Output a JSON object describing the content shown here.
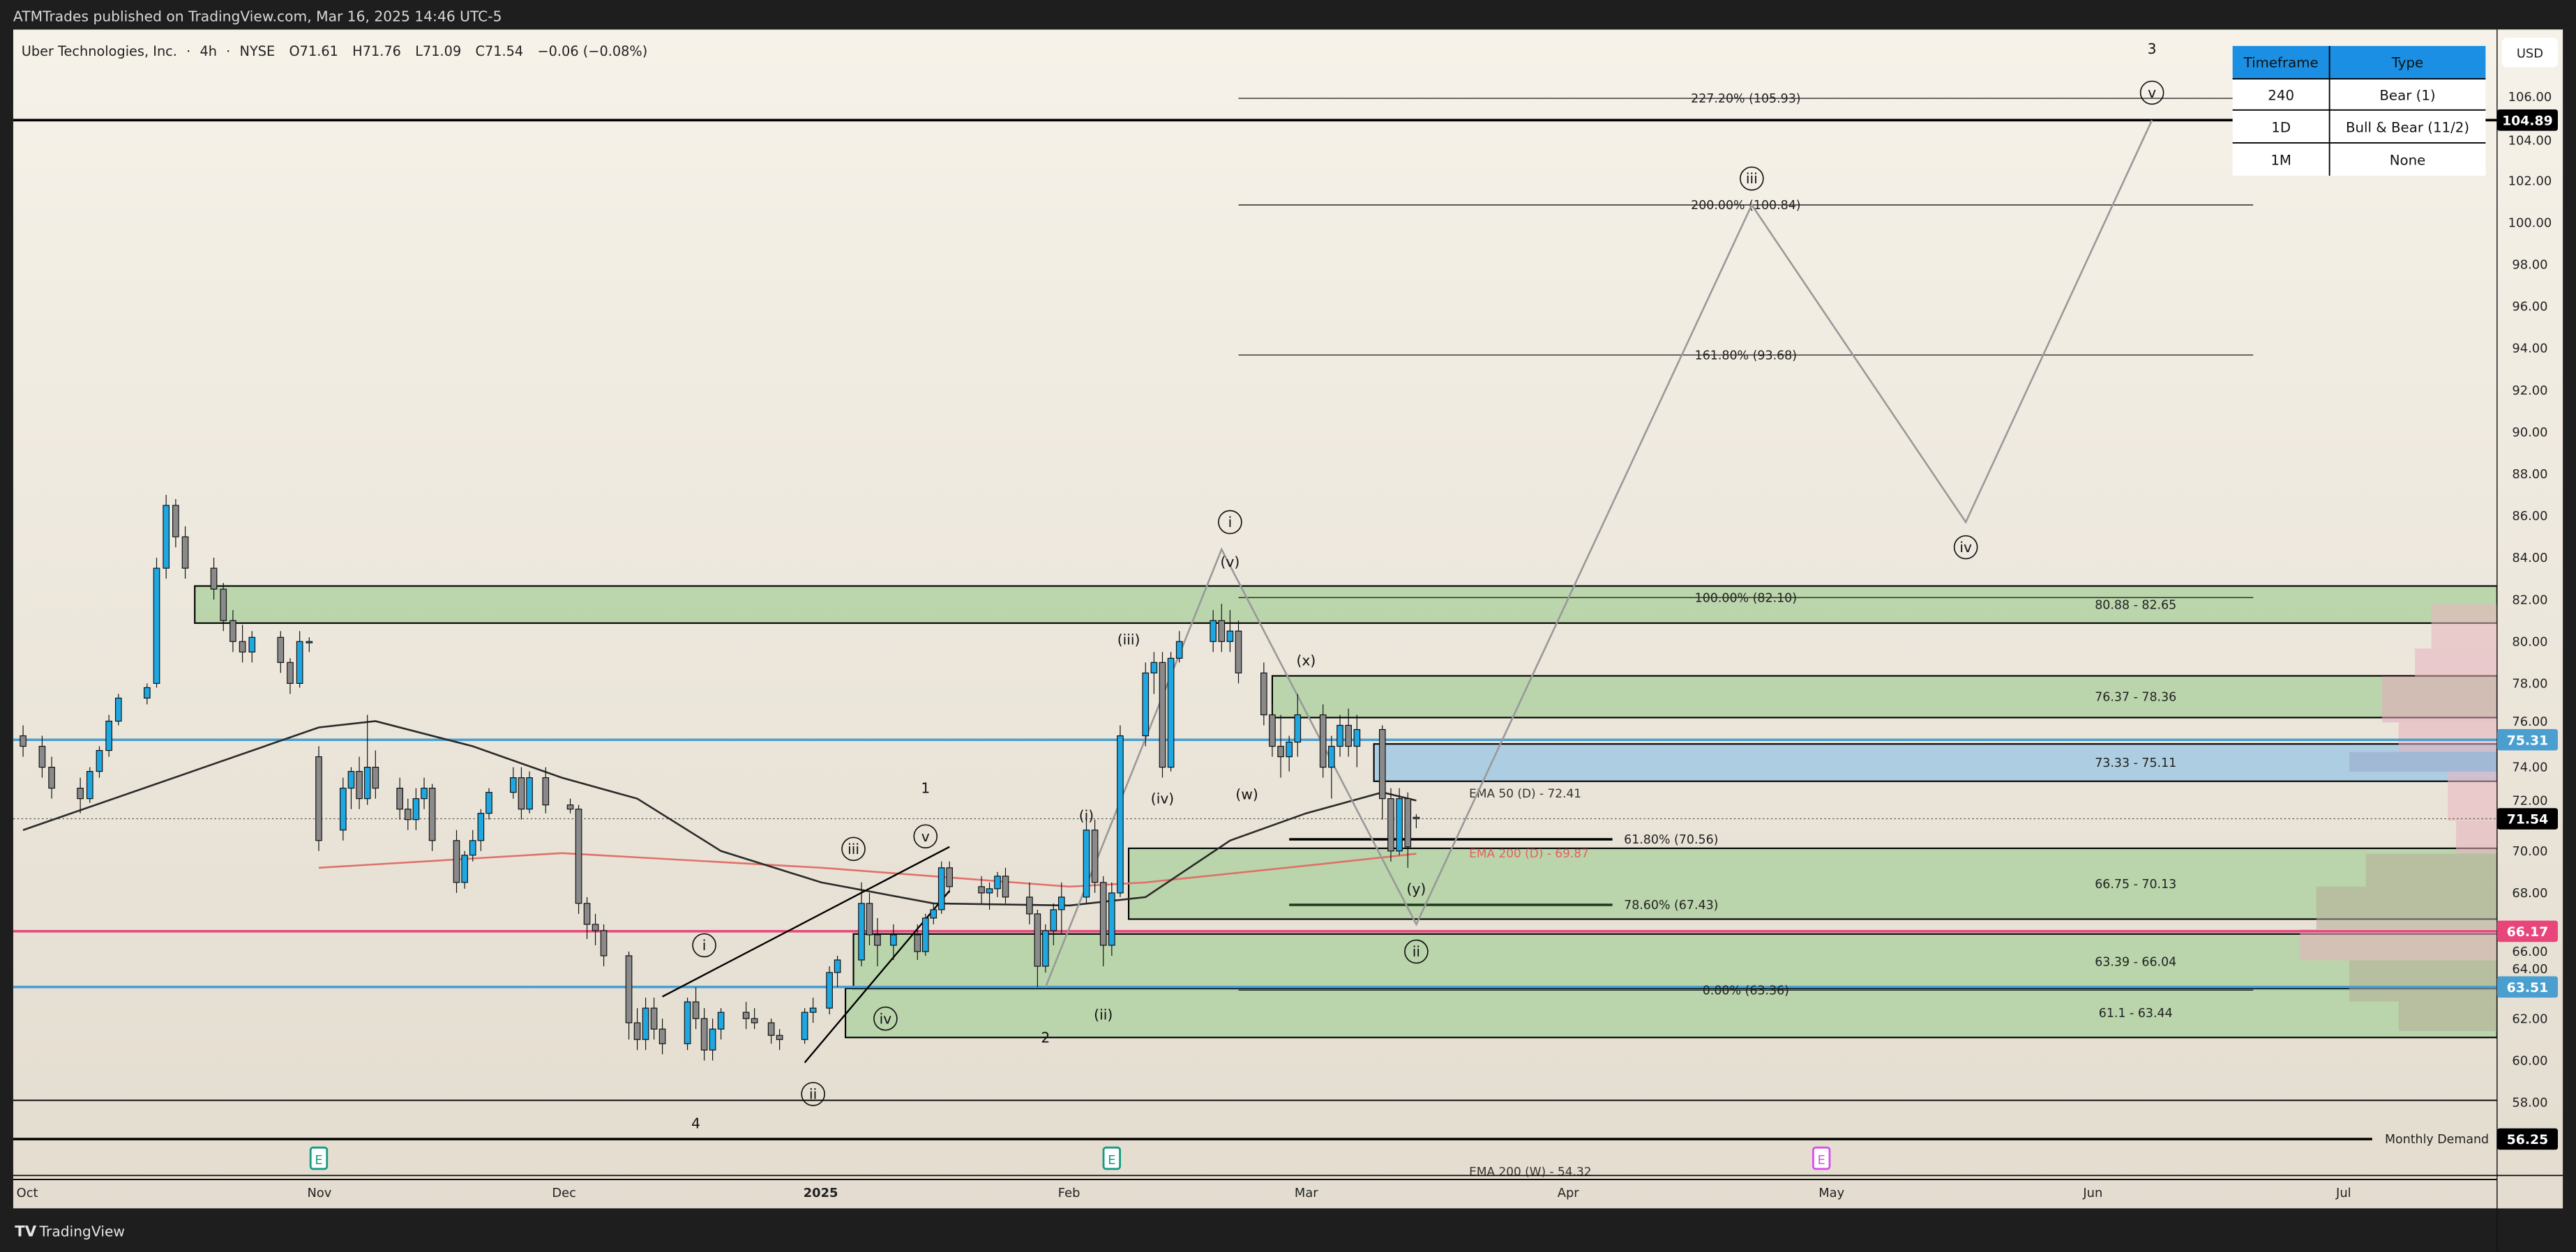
{
  "header": {
    "publisher_line": "ATMTrades published on TradingView.com, Mar 16, 2025 14:46 UTC-5"
  },
  "symbol_bar": {
    "name": "Uber Technologies, Inc.",
    "interval": "4h",
    "exchange": "NYSE",
    "open": "O71.61",
    "high": "H71.76",
    "low": "L71.09",
    "close": "C71.54",
    "change": "−0.06 (−0.08%)",
    "separator": "·"
  },
  "table": {
    "headers": [
      "Timeframe",
      "Type"
    ],
    "rows": [
      [
        "240",
        "Bear (1)"
      ],
      [
        "1D",
        "Bull & Bear (11/2)"
      ],
      [
        "1M",
        "None"
      ]
    ],
    "header_color": "#1a8fe3"
  },
  "price_axis": {
    "currency": "USD"
  },
  "time_axis": {
    "labels": [
      "Oct",
      "Nov",
      "Dec",
      "2025",
      "Feb",
      "Mar",
      "Apr",
      "May",
      "Jun",
      "Jul"
    ]
  },
  "footer": {
    "brand": "TradingView"
  },
  "chart_data": {
    "type": "candlestick",
    "symbol": "UBER",
    "ylim": [
      54,
      108
    ],
    "y_ticks": [
      106,
      104,
      102,
      100,
      98,
      96,
      94,
      92,
      90,
      88,
      86,
      84,
      82,
      80,
      78,
      76,
      74,
      72,
      70,
      68,
      66,
      64,
      62,
      60,
      58
    ],
    "colors": {
      "up": "#1ea7e1",
      "down": "#8a8a8a",
      "zone_green": "#b5d3a6",
      "zone_blue": "#a6cbe2",
      "ema50": "#2a2a2a",
      "ema200": "#e0706a",
      "wave": "#999999"
    },
    "candles": [
      [
        "2024-10-01",
        75.5,
        76,
        74.5,
        75
      ],
      [
        "2024-10-03",
        75,
        75.5,
        73.5,
        74
      ],
      [
        "2024-10-04",
        74,
        74.5,
        72.5,
        73
      ],
      [
        "2024-10-07",
        73,
        73.5,
        71.8,
        72.5
      ],
      [
        "2024-10-08",
        72.5,
        74,
        72.3,
        73.8
      ],
      [
        "2024-10-09",
        73.8,
        75,
        73.5,
        74.8
      ],
      [
        "2024-10-10",
        74.8,
        76.5,
        74.5,
        76.2
      ],
      [
        "2024-10-11",
        76.2,
        77.5,
        76,
        77.3
      ],
      [
        "2024-10-14",
        77.3,
        78,
        77,
        77.8
      ],
      [
        "2024-10-15",
        78,
        84,
        77.8,
        83.5
      ],
      [
        "2024-10-16",
        83.5,
        87,
        83,
        86.5
      ],
      [
        "2024-10-17",
        86.5,
        86.8,
        84.5,
        85
      ],
      [
        "2024-10-18",
        85,
        85.5,
        83,
        83.5
      ],
      [
        "2024-10-21",
        83.5,
        84,
        82,
        82.5
      ],
      [
        "2024-10-22",
        82.5,
        82.8,
        80.5,
        81
      ],
      [
        "2024-10-23",
        81,
        81.5,
        79.5,
        80
      ],
      [
        "2024-10-24",
        80,
        80.8,
        79,
        79.5
      ],
      [
        "2024-10-25",
        79.5,
        80.5,
        79,
        80.2
      ],
      [
        "2024-10-28",
        80.2,
        80.5,
        78.5,
        79
      ],
      [
        "2024-10-29",
        79,
        79.2,
        77.5,
        78
      ],
      [
        "2024-10-30",
        78,
        80.5,
        77.8,
        80
      ],
      [
        "2024-10-31",
        80,
        80.2,
        79.5,
        80
      ],
      [
        "2024-11-01",
        74.5,
        75,
        70,
        70.5
      ],
      [
        "2024-11-04",
        71,
        73.5,
        70.5,
        73
      ],
      [
        "2024-11-05",
        73,
        74,
        72,
        73.8
      ],
      [
        "2024-11-06",
        73.8,
        74.5,
        72,
        72.5
      ],
      [
        "2024-11-07",
        72.5,
        76.5,
        72.2,
        74
      ],
      [
        "2024-11-08",
        74,
        74.8,
        72.5,
        73
      ],
      [
        "2024-11-11",
        73,
        73.5,
        71.5,
        72
      ],
      [
        "2024-11-12",
        72,
        72.5,
        71,
        71.5
      ],
      [
        "2024-11-13",
        71.5,
        73,
        71,
        72.5
      ],
      [
        "2024-11-14",
        72.5,
        73.5,
        72,
        73
      ],
      [
        "2024-11-15",
        73,
        73.2,
        70,
        70.5
      ],
      [
        "2024-11-18",
        70.5,
        71,
        68,
        68.5
      ],
      [
        "2024-11-19",
        68.5,
        70,
        68.2,
        69.8
      ],
      [
        "2024-11-20",
        69.8,
        71,
        69.5,
        70.5
      ],
      [
        "2024-11-21",
        70.5,
        72,
        70,
        71.8
      ],
      [
        "2024-11-22",
        71.8,
        73,
        71.5,
        72.8
      ],
      [
        "2024-11-25",
        72.8,
        74,
        72.5,
        73.5
      ],
      [
        "2024-11-26",
        73.5,
        74,
        71.5,
        72
      ],
      [
        "2024-11-27",
        72,
        73.8,
        71.8,
        73.5
      ],
      [
        "2024-11-29",
        73.5,
        74,
        71.8,
        72.2
      ],
      [
        "2024-12-02",
        72.2,
        72.5,
        71.8,
        72
      ],
      [
        "2024-12-03",
        72,
        72.2,
        67,
        67.5
      ],
      [
        "2024-12-04",
        67.5,
        67.8,
        65.8,
        66.5
      ],
      [
        "2024-12-05",
        66.5,
        67,
        65.5,
        66.2
      ],
      [
        "2024-12-06",
        66.2,
        66.5,
        64.5,
        65
      ],
      [
        "2024-12-09",
        65,
        65.2,
        61,
        61.8
      ],
      [
        "2024-12-10",
        61.8,
        62.5,
        60.5,
        61
      ],
      [
        "2024-12-11",
        61,
        63,
        60.5,
        62.5
      ],
      [
        "2024-12-12",
        62.5,
        63,
        61,
        61.5
      ],
      [
        "2024-12-13",
        61.5,
        62,
        60.3,
        60.8
      ],
      [
        "2024-12-16",
        60.8,
        63,
        60.5,
        62.8
      ],
      [
        "2024-12-17",
        62.8,
        63.5,
        61.5,
        62
      ],
      [
        "2024-12-18",
        62,
        62.5,
        60,
        60.5
      ],
      [
        "2024-12-19",
        60.5,
        62,
        60,
        61.5
      ],
      [
        "2024-12-20",
        61.5,
        62.5,
        61,
        62.3
      ],
      [
        "2024-12-23",
        62.3,
        62.8,
        61.5,
        62
      ],
      [
        "2024-12-24",
        62,
        62.5,
        61.5,
        61.8
      ],
      [
        "2024-12-26",
        61.8,
        62,
        60.8,
        61.2
      ],
      [
        "2024-12-27",
        61.2,
        61.5,
        60.5,
        61
      ],
      [
        "2024-12-30",
        61,
        62.5,
        60.8,
        62.3
      ],
      [
        "2024-12-31",
        62.3,
        63,
        61.8,
        62.5
      ],
      [
        "2025-01-02",
        62.5,
        64.5,
        62.2,
        64.2
      ],
      [
        "2025-01-03",
        64.2,
        65,
        63.5,
        64.8
      ],
      [
        "2025-01-06",
        64.8,
        68.5,
        64.5,
        67.5
      ],
      [
        "2025-01-07",
        67.5,
        68,
        65.5,
        66
      ],
      [
        "2025-01-08",
        66,
        66.8,
        64.5,
        65.5
      ],
      [
        "2025-01-10",
        65.5,
        66.5,
        64.8,
        66
      ],
      [
        "2025-01-13",
        66,
        66.5,
        64.8,
        65.2
      ],
      [
        "2025-01-14",
        65.2,
        67,
        65,
        66.8
      ],
      [
        "2025-01-15",
        66.8,
        67.5,
        66.5,
        67.2
      ],
      [
        "2025-01-16",
        67.2,
        69.5,
        67,
        69.2
      ],
      [
        "2025-01-17",
        69.2,
        69.5,
        68,
        68.3
      ],
      [
        "2025-01-21",
        68.3,
        68.8,
        67.5,
        68
      ],
      [
        "2025-01-22",
        68,
        68.5,
        67.2,
        68.2
      ],
      [
        "2025-01-23",
        68.2,
        69,
        67.8,
        68.8
      ],
      [
        "2025-01-24",
        68.8,
        69.2,
        67.5,
        67.8
      ],
      [
        "2025-01-27",
        67.8,
        68.5,
        66.5,
        67
      ],
      [
        "2025-01-28",
        67,
        67.2,
        63.5,
        64.5
      ],
      [
        "2025-01-29",
        64.5,
        66.5,
        64.2,
        66.2
      ],
      [
        "2025-01-30",
        66.2,
        67.5,
        65.5,
        67.2
      ],
      [
        "2025-01-31",
        67.2,
        68.5,
        66,
        67.8
      ],
      [
        "2025-02-03",
        67.8,
        71.5,
        67.5,
        71
      ],
      [
        "2025-02-04",
        71,
        71.5,
        68,
        68.5
      ],
      [
        "2025-02-05",
        68.5,
        68.8,
        64.5,
        65.5
      ],
      [
        "2025-02-06",
        65.5,
        68.5,
        65,
        68
      ],
      [
        "2025-02-07",
        68,
        76,
        67.8,
        75.5
      ],
      [
        "2025-02-10",
        75.5,
        79,
        75,
        78.5
      ],
      [
        "2025-02-11",
        78.5,
        79.5,
        77.5,
        79
      ],
      [
        "2025-02-12",
        79,
        79.5,
        73.5,
        74
      ],
      [
        "2025-02-13",
        74,
        79.5,
        73.8,
        79.2
      ],
      [
        "2025-02-14",
        79.2,
        80.5,
        79,
        80
      ],
      [
        "2025-02-18",
        80,
        81.5,
        79.5,
        81
      ],
      [
        "2025-02-19",
        81,
        81.8,
        79.5,
        80
      ],
      [
        "2025-02-20",
        80,
        81.5,
        79.5,
        80.5
      ],
      [
        "2025-02-21",
        80.5,
        81,
        78,
        78.5
      ],
      [
        "2025-02-24",
        78.5,
        79,
        76,
        76.5
      ],
      [
        "2025-02-25",
        76.5,
        77,
        74.5,
        75
      ],
      [
        "2025-02-26",
        75,
        76.5,
        73.5,
        74.5
      ],
      [
        "2025-02-27",
        74.5,
        75.5,
        73.8,
        75.2
      ],
      [
        "2025-02-28",
        75.2,
        77.5,
        74.5,
        76.5
      ],
      [
        "2025-03-03",
        76.5,
        77,
        73.5,
        74
      ],
      [
        "2025-03-04",
        74,
        75.5,
        72.5,
        75
      ],
      [
        "2025-03-05",
        75,
        76.5,
        74.5,
        76
      ],
      [
        "2025-03-06",
        76,
        76.8,
        74.5,
        75
      ],
      [
        "2025-03-07",
        75,
        76.5,
        74,
        75.8
      ],
      [
        "2025-03-10",
        75.8,
        76,
        71.5,
        72.5
      ],
      [
        "2025-03-11",
        72.5,
        73,
        69.5,
        70
      ],
      [
        "2025-03-12",
        70,
        73,
        69.8,
        72.5
      ],
      [
        "2025-03-13",
        72.5,
        72.8,
        69.2,
        70.2
      ],
      [
        "2025-03-14",
        71.61,
        71.76,
        71.09,
        71.54
      ]
    ],
    "ema50_daily": [
      [
        "2024-10-01",
        71
      ],
      [
        "2024-10-20",
        74
      ],
      [
        "2024-11-01",
        75.9
      ],
      [
        "2024-11-08",
        76.2
      ],
      [
        "2024-11-20",
        75
      ],
      [
        "2024-12-01",
        73.5
      ],
      [
        "2024-12-10",
        72.5
      ],
      [
        "2024-12-20",
        70
      ],
      [
        "2025-01-01",
        68.5
      ],
      [
        "2025-01-15",
        67.5
      ],
      [
        "2025-02-01",
        67.4
      ],
      [
        "2025-02-10",
        67.8
      ],
      [
        "2025-02-20",
        70.5
      ],
      [
        "2025-03-01",
        71.8
      ],
      [
        "2025-03-10",
        72.8
      ],
      [
        "2025-03-14",
        72.41
      ]
    ],
    "ema200_daily": [
      [
        "2024-11-01",
        69.2
      ],
      [
        "2024-12-01",
        69.9
      ],
      [
        "2025-01-01",
        69.2
      ],
      [
        "2025-02-01",
        68.3
      ],
      [
        "2025-02-10",
        68.5
      ],
      [
        "2025-03-01",
        69.3
      ],
      [
        "2025-03-14",
        69.87
      ]
    ],
    "indicator_labels": [
      {
        "text": "EMA 50 (D) - 72.41",
        "date": "2025-03-15",
        "price": 72.55,
        "color": "#333333"
      },
      {
        "text": "EMA 200 (D) - 69.87",
        "date": "2025-03-15",
        "price": 69.7,
        "color": "#e86060"
      },
      {
        "text": "EMA 200 (W) - 54.32",
        "date": "2025-03-15",
        "price": 54.5,
        "color": "#333333"
      }
    ],
    "zones": [
      {
        "low": 80.88,
        "high": 82.65,
        "start": "2024-10-19",
        "color": "green",
        "label": "80.88 - 82.65"
      },
      {
        "low": 76.37,
        "high": 78.36,
        "start": "2025-02-25",
        "color": "green",
        "label": "76.37 - 78.36"
      },
      {
        "low": 73.33,
        "high": 75.11,
        "start": "2025-03-09",
        "color": "blue",
        "label": "73.33 - 75.11"
      },
      {
        "low": 66.75,
        "high": 70.13,
        "start": "2025-02-08",
        "color": "green",
        "label": "66.75 - 70.13"
      },
      {
        "low": 63.39,
        "high": 66.04,
        "start": "2025-01-05",
        "color": "green",
        "label": "63.39 - 66.04"
      },
      {
        "low": 61.1,
        "high": 63.44,
        "start": "2025-01-04",
        "color": "green",
        "label": "61.1 - 63.44"
      }
    ],
    "levels": [
      {
        "price": 104.89,
        "color": "#000000",
        "badge": "104.89"
      },
      {
        "price": 75.31,
        "color": "#4a9fd0",
        "badge": "75.31"
      },
      {
        "price": 71.54,
        "color": "#555555",
        "badge": "71.54",
        "dotted": true
      },
      {
        "price": 66.17,
        "color": "#e8457b",
        "badge": "66.17"
      },
      {
        "price": 63.51,
        "color": "#4a9fd0",
        "badge": "63.51"
      },
      {
        "price": 58.1,
        "color": "#000000"
      },
      {
        "price": 56.25,
        "color": "#000000",
        "badge": "56.25",
        "label": "Monthly Demand"
      },
      {
        "price": 54.32,
        "color": "#000000"
      }
    ],
    "fibonacci": [
      {
        "label": "227.20% (105.93)",
        "price": 105.93,
        "start": "2025-02-21",
        "end": "2025-06-20"
      },
      {
        "label": "200.00% (100.84)",
        "price": 100.84,
        "start": "2025-02-21",
        "end": "2025-06-20"
      },
      {
        "label": "161.80% (93.68)",
        "price": 93.68,
        "start": "2025-02-21",
        "end": "2025-06-20"
      },
      {
        "label": "100.00% (82.10)",
        "price": 82.1,
        "start": "2025-02-21",
        "end": "2025-06-20"
      },
      {
        "label": "61.80% (70.56)",
        "price": 70.56,
        "start": "2025-02-27",
        "end": "2025-04-06",
        "bold": true
      },
      {
        "label": "78.60% (67.43)",
        "price": 67.43,
        "start": "2025-02-27",
        "end": "2025-04-06",
        "bold": true
      },
      {
        "label": "0.00% (63.36)",
        "price": 63.36,
        "start": "2025-02-21",
        "end": "2025-06-20"
      }
    ],
    "wave_projection": [
      [
        "2025-01-29",
        63.5
      ],
      [
        "2025-02-19",
        84.4
      ],
      [
        "2025-03-14",
        66.5
      ],
      [
        "2025-04-22",
        100.84
      ],
      [
        "2025-05-17",
        85.7
      ],
      [
        "2025-06-08",
        104.89
      ]
    ],
    "trendlines": [
      [
        [
          "2024-12-13",
          63.05
        ],
        [
          "2025-01-17",
          70.2
        ]
      ],
      [
        [
          "2024-12-30",
          59.9
        ],
        [
          "2025-01-17",
          68.1
        ]
      ]
    ],
    "wave_labels": [
      {
        "text": "3",
        "date": "2025-06-08",
        "price": 108.3,
        "circled": false
      },
      {
        "text": "v",
        "date": "2025-06-08",
        "price": 106.2,
        "circled": true
      },
      {
        "text": "iii",
        "date": "2025-04-22",
        "price": 102.1,
        "circled": true
      },
      {
        "text": "iv",
        "date": "2025-05-17",
        "price": 84.5,
        "circled": true
      },
      {
        "text": "i",
        "date": "2025-02-20",
        "price": 85.7,
        "circled": true
      },
      {
        "text": "(v)",
        "date": "2025-02-20",
        "price": 83.8,
        "circled": false
      },
      {
        "text": "(iii)",
        "date": "2025-02-08",
        "price": 80.1,
        "circled": false
      },
      {
        "text": "(x)",
        "date": "2025-03-01",
        "price": 79.1,
        "circled": false
      },
      {
        "text": "(w)",
        "date": "2025-02-22",
        "price": 72.7,
        "circled": false
      },
      {
        "text": "(iv)",
        "date": "2025-02-12",
        "price": 72.5,
        "circled": false
      },
      {
        "text": "(i)",
        "date": "2025-02-03",
        "price": 71.7,
        "circled": false
      },
      {
        "text": "(y)",
        "date": "2025-03-14",
        "price": 68.2,
        "circled": false
      },
      {
        "text": "ii",
        "date": "2025-03-14",
        "price": 65.2,
        "circled": true
      },
      {
        "text": "(ii)",
        "date": "2025-02-05",
        "price": 62.2,
        "circled": false
      },
      {
        "text": "2",
        "date": "2025-01-29",
        "price": 61.1,
        "circled": false
      },
      {
        "text": "1",
        "date": "2025-01-14",
        "price": 73.0,
        "circled": false
      },
      {
        "text": "v",
        "date": "2025-01-14",
        "price": 70.7,
        "circled": true
      },
      {
        "text": "iii",
        "date": "2025-01-05",
        "price": 70.1,
        "circled": true
      },
      {
        "text": "iv",
        "date": "2025-01-09",
        "price": 62.0,
        "circled": true
      },
      {
        "text": "i",
        "date": "2024-12-18",
        "price": 65.5,
        "circled": true
      },
      {
        "text": "ii",
        "date": "2024-12-31",
        "price": 58.4,
        "circled": true
      },
      {
        "text": "4",
        "date": "2024-12-17",
        "price": 57.0,
        "circled": false
      }
    ],
    "earnings_markers": [
      {
        "text": "E",
        "date": "2024-11-01",
        "color": "#149c84"
      },
      {
        "text": "E",
        "date": "2025-02-06",
        "color": "#149c84"
      },
      {
        "text": "E",
        "date": "2025-04-30",
        "color": "#d94fe8"
      }
    ]
  }
}
